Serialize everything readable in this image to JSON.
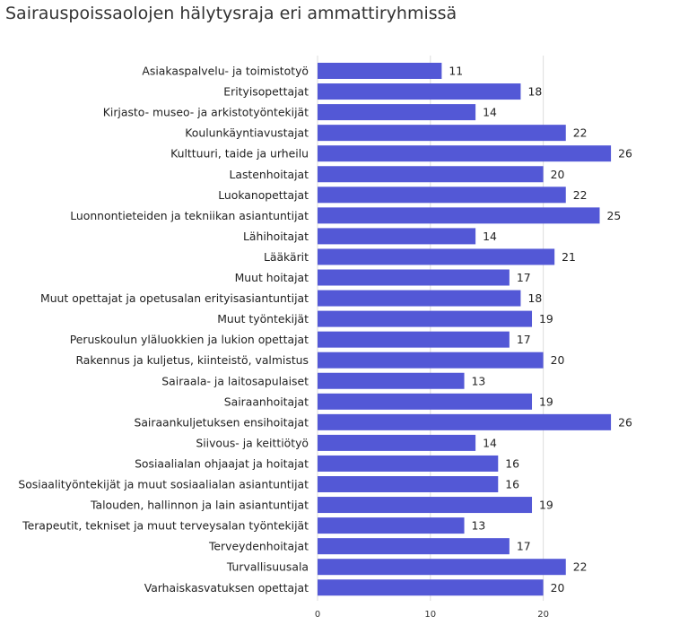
{
  "chart_data": {
    "type": "bar",
    "orientation": "horizontal",
    "title": "Sairauspoissaolojen hälytysraja eri ammattiryhmissä",
    "bar_color": "#5358d6",
    "grid": true,
    "xlim": [
      0,
      28
    ],
    "xticks": [
      0,
      10,
      20
    ],
    "categories": [
      "Asiakaspalvelu- ja toimistotyö",
      "Erityisopettajat",
      "Kirjasto- museo- ja arkistotyöntekijät",
      "Koulunkäyntiavustajat",
      "Kulttuuri, taide ja urheilu",
      "Lastenhoitajat",
      "Luokanopettajat",
      "Luonnontieteiden ja tekniikan asiantuntijat",
      "Lähihoitajat",
      "Lääkärit",
      "Muut hoitajat",
      "Muut opettajat ja opetusalan erityisasiantuntijat",
      "Muut työntekijät",
      "Peruskoulun yläluokkien ja lukion opettajat",
      "Rakennus ja kuljetus, kiinteistö, valmistus",
      "Sairaala- ja laitosapulaiset",
      "Sairaanhoitajat",
      "Sairaankuljetuksen ensihoitajat",
      "Siivous- ja keittiötyö",
      "Sosiaalialan ohjaajat ja hoitajat",
      "Sosiaalityöntekijät ja muut sosiaalialan asiantuntijat",
      "Talouden, hallinnon ja lain asiantuntijat",
      "Terapeutit, tekniset ja muut terveysalan työntekijät",
      "Terveydenhoitajat",
      "Turvallisuusala",
      "Varhaiskasvatuksen opettajat"
    ],
    "values": [
      11,
      18,
      14,
      22,
      26,
      20,
      22,
      25,
      14,
      21,
      17,
      18,
      19,
      17,
      20,
      13,
      19,
      26,
      14,
      16,
      16,
      19,
      13,
      17,
      22,
      20
    ]
  }
}
